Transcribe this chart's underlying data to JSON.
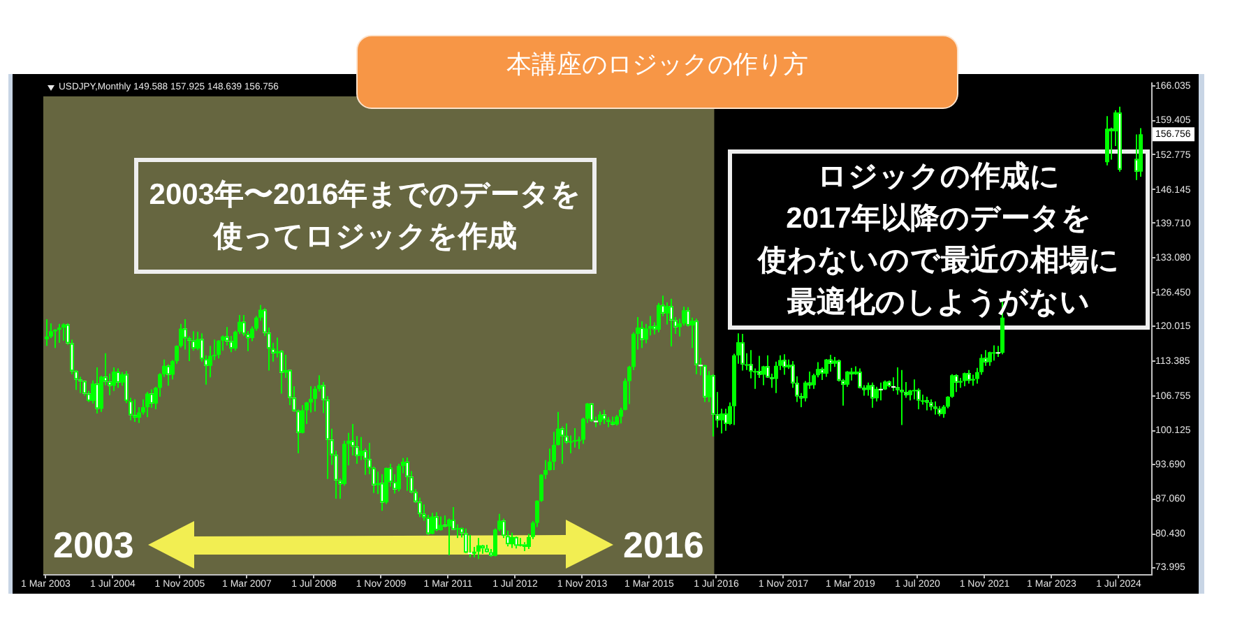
{
  "chart_data": {
    "type": "candlestick",
    "title": "本講座のロジックの作り方",
    "subtitle": "USDJPY,Monthly 149.588 157.925 148.639 156.756",
    "color": "#00ff00",
    "x": [
      "2003-03",
      "2003-04",
      "2003-05",
      "2003-06",
      "2003-07",
      "2003-08",
      "2003-09",
      "2003-10",
      "2003-11",
      "2003-12",
      "2004-01",
      "2004-02",
      "2004-03",
      "2004-04",
      "2004-05",
      "2004-06",
      "2004-07",
      "2004-08",
      "2004-09",
      "2004-10",
      "2004-11",
      "2004-12",
      "2005-01",
      "2005-02",
      "2005-03",
      "2005-04",
      "2005-05",
      "2005-06",
      "2005-07",
      "2005-08",
      "2005-09",
      "2005-10",
      "2005-11",
      "2005-12",
      "2006-01",
      "2006-02",
      "2006-03",
      "2006-04",
      "2006-05",
      "2006-06",
      "2006-07",
      "2006-08",
      "2006-09",
      "2006-10",
      "2006-11",
      "2006-12",
      "2007-01",
      "2007-02",
      "2007-03",
      "2007-04",
      "2007-05",
      "2007-06",
      "2007-07",
      "2007-08",
      "2007-09",
      "2007-10",
      "2007-11",
      "2007-12",
      "2008-01",
      "2008-02",
      "2008-03",
      "2008-04",
      "2008-05",
      "2008-06",
      "2008-07",
      "2008-08",
      "2008-09",
      "2008-10",
      "2008-11",
      "2008-12",
      "2009-01",
      "2009-02",
      "2009-03",
      "2009-04",
      "2009-05",
      "2009-06",
      "2009-07",
      "2009-08",
      "2009-09",
      "2009-10",
      "2009-11",
      "2009-12",
      "2010-01",
      "2010-02",
      "2010-03",
      "2010-04",
      "2010-05",
      "2010-06",
      "2010-07",
      "2010-08",
      "2010-09",
      "2010-10",
      "2010-11",
      "2010-12",
      "2011-01",
      "2011-02",
      "2011-03",
      "2011-04",
      "2011-05",
      "2011-06",
      "2011-07",
      "2011-08",
      "2011-09",
      "2011-10",
      "2011-11",
      "2011-12",
      "2012-01",
      "2012-02",
      "2012-03",
      "2012-04",
      "2012-05",
      "2012-06",
      "2012-07",
      "2012-08",
      "2012-09",
      "2012-10",
      "2012-11",
      "2012-12",
      "2013-01",
      "2013-02",
      "2013-03",
      "2013-04",
      "2013-05",
      "2013-06",
      "2013-07",
      "2013-08",
      "2013-09",
      "2013-10",
      "2013-11",
      "2013-12",
      "2014-01",
      "2014-02",
      "2014-03",
      "2014-04",
      "2014-05",
      "2014-06",
      "2014-07",
      "2014-08",
      "2014-09",
      "2014-10",
      "2014-11",
      "2014-12",
      "2015-01",
      "2015-02",
      "2015-03",
      "2015-04",
      "2015-05",
      "2015-06",
      "2015-07",
      "2015-08",
      "2015-09",
      "2015-10",
      "2015-11",
      "2015-12",
      "2016-01",
      "2016-02",
      "2016-03",
      "2016-04",
      "2016-05",
      "2016-06",
      "2016-07",
      "2016-08",
      "2016-09",
      "2016-10",
      "2016-11",
      "2016-12",
      "2017-01",
      "2017-02",
      "2017-03",
      "2017-04",
      "2017-05",
      "2017-06",
      "2017-07",
      "2017-08",
      "2017-09",
      "2017-10",
      "2017-11",
      "2017-12",
      "2018-01",
      "2018-02",
      "2018-03",
      "2018-04",
      "2018-05",
      "2018-06",
      "2018-07",
      "2018-08",
      "2018-09",
      "2018-10",
      "2018-11",
      "2018-12",
      "2019-01",
      "2019-02",
      "2019-03",
      "2019-04",
      "2019-05",
      "2019-06",
      "2019-07",
      "2019-08",
      "2019-09",
      "2019-10",
      "2019-11",
      "2019-12",
      "2020-01",
      "2020-02",
      "2020-03",
      "2020-04",
      "2020-05",
      "2020-06",
      "2020-07",
      "2020-08",
      "2020-09",
      "2020-10",
      "2020-11",
      "2020-12",
      "2021-01",
      "2021-02",
      "2021-03",
      "2021-04",
      "2021-05",
      "2021-06",
      "2021-07",
      "2021-08",
      "2021-09",
      "2021-10",
      "2021-11",
      "2021-12",
      "2022-01",
      "2022-02",
      "2022-03",
      "2024-04",
      "2024-05",
      "2024-06",
      "2024-07",
      "2024-11",
      "2024-12"
    ],
    "ohlc": [
      [
        117.6,
        121.4,
        116.3,
        118.1
      ],
      [
        118.1,
        120.6,
        117.8,
        119.1
      ],
      [
        119.1,
        119.5,
        115.9,
        119.4
      ],
      [
        119.4,
        120.5,
        116.9,
        119.8
      ],
      [
        119.8,
        120.6,
        117.3,
        120.4
      ],
      [
        120.4,
        120.6,
        116.5,
        116.8
      ],
      [
        116.8,
        117.5,
        110.9,
        111.5
      ],
      [
        111.5,
        111.7,
        107.9,
        109.9
      ],
      [
        109.9,
        110.4,
        107.3,
        109.6
      ],
      [
        109.6,
        109.7,
        106.8,
        107.2
      ],
      [
        107.2,
        107.7,
        105.6,
        105.8
      ],
      [
        105.8,
        109.7,
        105.3,
        109.1
      ],
      [
        109.1,
        112.2,
        103.4,
        104.3
      ],
      [
        104.3,
        110.6,
        103.7,
        110.4
      ],
      [
        110.4,
        114.9,
        108.8,
        109.5
      ],
      [
        109.5,
        111.0,
        106.9,
        108.7
      ],
      [
        108.7,
        112.2,
        107.7,
        111.4
      ],
      [
        111.4,
        112.0,
        108.3,
        109.3
      ],
      [
        109.3,
        111.3,
        108.7,
        110.9
      ],
      [
        110.9,
        111.5,
        105.4,
        105.8
      ],
      [
        105.8,
        106.4,
        102.1,
        103.1
      ],
      [
        103.1,
        106.1,
        101.8,
        102.6
      ],
      [
        102.6,
        104.6,
        101.6,
        103.6
      ],
      [
        103.6,
        106.1,
        103.2,
        104.6
      ],
      [
        104.6,
        107.5,
        102.7,
        107.2
      ],
      [
        107.2,
        108.0,
        104.5,
        105.3
      ],
      [
        105.3,
        108.5,
        104.2,
        108.3
      ],
      [
        108.3,
        111.1,
        106.6,
        110.9
      ],
      [
        110.9,
        113.7,
        110.4,
        112.5
      ],
      [
        112.5,
        112.8,
        108.7,
        110.8
      ],
      [
        110.8,
        113.6,
        109.9,
        113.4
      ],
      [
        113.4,
        116.4,
        112.9,
        116.3
      ],
      [
        116.3,
        120.5,
        116.0,
        119.6
      ],
      [
        119.6,
        121.4,
        115.6,
        117.8
      ],
      [
        117.8,
        118.1,
        113.4,
        117.3
      ],
      [
        117.3,
        119.1,
        115.4,
        115.8
      ],
      [
        115.8,
        119.0,
        115.5,
        117.6
      ],
      [
        117.6,
        118.7,
        113.3,
        113.8
      ],
      [
        113.8,
        114.5,
        108.9,
        112.5
      ],
      [
        112.5,
        116.3,
        110.3,
        114.4
      ],
      [
        114.4,
        117.5,
        113.6,
        114.6
      ],
      [
        114.6,
        117.4,
        113.9,
        117.3
      ],
      [
        117.3,
        118.3,
        115.4,
        118.1
      ],
      [
        118.1,
        119.9,
        116.4,
        117.2
      ],
      [
        117.2,
        118.2,
        115.1,
        115.8
      ],
      [
        115.8,
        119.2,
        115.4,
        119.0
      ],
      [
        119.0,
        122.2,
        118.6,
        120.9
      ],
      [
        120.9,
        122.2,
        118.2,
        118.6
      ],
      [
        118.6,
        119.1,
        115.3,
        117.8
      ],
      [
        117.8,
        120.0,
        117.2,
        119.6
      ],
      [
        119.6,
        122.0,
        119.2,
        121.7
      ],
      [
        121.7,
        124.1,
        121.1,
        123.2
      ],
      [
        123.2,
        123.5,
        118.2,
        118.8
      ],
      [
        118.8,
        119.8,
        111.6,
        115.8
      ],
      [
        115.8,
        116.9,
        113.3,
        114.9
      ],
      [
        114.9,
        117.9,
        114.1,
        115.3
      ],
      [
        115.3,
        115.5,
        107.2,
        111.2
      ],
      [
        111.2,
        114.6,
        110.2,
        111.7
      ],
      [
        111.7,
        111.8,
        105.0,
        106.4
      ],
      [
        106.4,
        108.6,
        103.7,
        103.9
      ],
      [
        103.9,
        104.2,
        95.8,
        99.7
      ],
      [
        99.7,
        105.0,
        99.6,
        104.0
      ],
      [
        104.0,
        105.6,
        101.4,
        105.5
      ],
      [
        105.5,
        108.6,
        103.6,
        106.2
      ],
      [
        106.2,
        108.6,
        103.8,
        108.1
      ],
      [
        108.1,
        110.7,
        107.6,
        108.8
      ],
      [
        108.8,
        109.4,
        103.5,
        106.0
      ],
      [
        106.0,
        106.7,
        90.9,
        98.4
      ],
      [
        98.4,
        100.5,
        93.6,
        95.5
      ],
      [
        95.5,
        96.3,
        87.1,
        90.6
      ],
      [
        90.6,
        91.0,
        87.1,
        89.9
      ],
      [
        89.9,
        98.2,
        89.6,
        97.6
      ],
      [
        97.6,
        99.7,
        93.5,
        98.2
      ],
      [
        98.2,
        101.4,
        95.4,
        97.1
      ],
      [
        97.1,
        99.1,
        93.8,
        95.3
      ],
      [
        95.3,
        98.9,
        94.5,
        96.3
      ],
      [
        96.3,
        96.7,
        91.7,
        94.7
      ],
      [
        94.7,
        97.8,
        91.8,
        93.0
      ],
      [
        93.0,
        93.3,
        88.2,
        89.7
      ],
      [
        89.7,
        92.3,
        88.0,
        90.1
      ],
      [
        90.1,
        91.8,
        84.8,
        86.4
      ],
      [
        86.4,
        93.1,
        86.1,
        93.0
      ],
      [
        93.0,
        93.8,
        89.4,
        90.3
      ],
      [
        90.3,
        91.8,
        88.1,
        88.9
      ],
      [
        88.9,
        93.8,
        88.5,
        93.4
      ],
      [
        93.4,
        94.9,
        92.0,
        94.2
      ],
      [
        94.2,
        95.0,
        88.6,
        91.3
      ],
      [
        91.3,
        92.4,
        88.1,
        88.4
      ],
      [
        88.4,
        88.9,
        86.3,
        86.5
      ],
      [
        86.5,
        87.3,
        83.6,
        84.2
      ],
      [
        84.2,
        86.0,
        82.9,
        83.5
      ],
      [
        83.5,
        84.0,
        80.2,
        80.4
      ],
      [
        80.4,
        84.4,
        80.3,
        83.7
      ],
      [
        83.7,
        84.5,
        80.9,
        81.1
      ],
      [
        81.1,
        83.7,
        81.0,
        82.1
      ],
      [
        82.1,
        83.9,
        81.6,
        81.8
      ],
      [
        81.8,
        83.3,
        76.3,
        83.1
      ],
      [
        83.1,
        85.5,
        81.1,
        81.2
      ],
      [
        81.2,
        82.2,
        79.6,
        81.5
      ],
      [
        81.5,
        81.6,
        79.7,
        80.5
      ],
      [
        80.5,
        81.4,
        76.7,
        76.8
      ],
      [
        76.8,
        80.2,
        75.9,
        76.6
      ],
      [
        76.6,
        77.9,
        75.9,
        77.0
      ],
      [
        77.0,
        79.6,
        75.6,
        78.2
      ],
      [
        78.2,
        78.3,
        76.6,
        77.6
      ],
      [
        77.6,
        78.3,
        76.8,
        76.9
      ],
      [
        76.9,
        77.5,
        76.0,
        76.2
      ],
      [
        76.2,
        81.4,
        76.1,
        81.2
      ],
      [
        81.2,
        84.2,
        80.9,
        82.9
      ],
      [
        82.9,
        83.3,
        79.6,
        80.0
      ],
      [
        80.0,
        81.0,
        78.0,
        78.4
      ],
      [
        78.4,
        80.6,
        77.7,
        79.8
      ],
      [
        79.8,
        79.9,
        77.6,
        78.1
      ],
      [
        78.1,
        79.6,
        78.0,
        78.4
      ],
      [
        78.4,
        78.8,
        77.1,
        77.9
      ],
      [
        77.9,
        80.4,
        77.5,
        79.8
      ],
      [
        79.8,
        82.8,
        79.4,
        82.5
      ],
      [
        82.5,
        86.8,
        81.7,
        86.7
      ],
      [
        86.7,
        91.8,
        86.5,
        91.7
      ],
      [
        91.7,
        94.5,
        90.9,
        92.6
      ],
      [
        92.6,
        96.7,
        92.5,
        94.2
      ],
      [
        94.2,
        99.9,
        92.6,
        97.4
      ],
      [
        97.4,
        103.7,
        97.3,
        100.5
      ],
      [
        100.5,
        100.9,
        93.8,
        99.1
      ],
      [
        99.1,
        101.5,
        97.6,
        97.9
      ],
      [
        97.9,
        99.2,
        95.8,
        98.1
      ],
      [
        98.1,
        100.6,
        96.9,
        98.3
      ],
      [
        98.3,
        99.0,
        96.6,
        98.4
      ],
      [
        98.4,
        102.6,
        97.6,
        102.4
      ],
      [
        102.4,
        105.4,
        101.6,
        105.3
      ],
      [
        105.3,
        105.4,
        101.8,
        102.0
      ],
      [
        102.0,
        102.8,
        100.8,
        101.8
      ],
      [
        101.8,
        103.8,
        101.2,
        103.2
      ],
      [
        103.2,
        104.1,
        101.4,
        102.2
      ],
      [
        102.2,
        102.7,
        100.8,
        101.8
      ],
      [
        101.8,
        102.8,
        101.1,
        101.3
      ],
      [
        101.3,
        103.1,
        101.1,
        102.8
      ],
      [
        102.8,
        104.5,
        101.5,
        104.1
      ],
      [
        104.1,
        110.1,
        104.0,
        109.6
      ],
      [
        109.6,
        112.5,
        105.2,
        112.3
      ],
      [
        112.3,
        118.9,
        111.7,
        118.6
      ],
      [
        118.6,
        121.8,
        115.6,
        119.8
      ],
      [
        119.8,
        121.0,
        115.9,
        117.5
      ],
      [
        117.5,
        120.5,
        116.8,
        119.6
      ],
      [
        119.6,
        122.0,
        118.3,
        120.1
      ],
      [
        120.1,
        120.8,
        118.5,
        119.4
      ],
      [
        119.4,
        124.5,
        118.9,
        124.1
      ],
      [
        124.1,
        125.9,
        122.0,
        122.5
      ],
      [
        122.5,
        124.6,
        120.4,
        123.9
      ],
      [
        123.9,
        125.3,
        116.2,
        121.2
      ],
      [
        121.2,
        121.8,
        118.6,
        119.9
      ],
      [
        119.9,
        121.5,
        118.1,
        120.6
      ],
      [
        120.6,
        123.8,
        120.2,
        123.1
      ],
      [
        123.1,
        123.7,
        120.0,
        120.2
      ],
      [
        120.2,
        121.7,
        115.9,
        121.1
      ],
      [
        121.1,
        121.5,
        110.9,
        112.7
      ],
      [
        112.7,
        114.0,
        110.7,
        112.6
      ],
      [
        112.6,
        112.7,
        105.6,
        106.5
      ],
      [
        106.5,
        111.5,
        105.6,
        110.7
      ],
      [
        110.7,
        110.9,
        99.0,
        103.2
      ],
      [
        103.2,
        107.5,
        100.7,
        102.1
      ],
      [
        102.1,
        104.3,
        99.6,
        103.4
      ],
      [
        103.4,
        104.3,
        100.1,
        101.4
      ],
      [
        101.4,
        105.5,
        101.2,
        104.8
      ],
      [
        104.8,
        114.8,
        101.2,
        114.5
      ],
      [
        114.5,
        118.7,
        112.9,
        117.0
      ],
      [
        117.0,
        118.6,
        111.6,
        112.8
      ],
      [
        112.8,
        114.9,
        111.7,
        112.8
      ],
      [
        112.8,
        115.5,
        110.1,
        111.4
      ],
      [
        111.4,
        112.0,
        108.1,
        111.5
      ],
      [
        111.5,
        114.4,
        110.2,
        110.8
      ],
      [
        110.8,
        112.5,
        108.8,
        112.4
      ],
      [
        112.4,
        114.5,
        110.2,
        110.3
      ],
      [
        110.3,
        111.0,
        108.3,
        110.0
      ],
      [
        110.0,
        113.3,
        107.3,
        112.5
      ],
      [
        112.5,
        114.5,
        111.7,
        113.6
      ],
      [
        113.6,
        114.7,
        110.8,
        112.2
      ],
      [
        112.2,
        113.7,
        111.9,
        112.7
      ],
      [
        112.7,
        113.4,
        108.3,
        109.2
      ],
      [
        109.2,
        110.5,
        105.6,
        106.7
      ],
      [
        106.7,
        107.3,
        104.6,
        106.3
      ],
      [
        106.3,
        109.6,
        105.7,
        109.3
      ],
      [
        109.3,
        111.4,
        108.1,
        108.8
      ],
      [
        108.8,
        111.0,
        108.1,
        110.7
      ],
      [
        110.7,
        113.2,
        110.3,
        111.9
      ],
      [
        111.9,
        112.2,
        109.8,
        111.0
      ],
      [
        111.0,
        113.8,
        110.4,
        113.7
      ],
      [
        113.7,
        114.6,
        111.4,
        112.9
      ],
      [
        112.9,
        114.2,
        112.3,
        113.5
      ],
      [
        113.5,
        113.7,
        109.5,
        109.7
      ],
      [
        109.7,
        110.0,
        104.9,
        108.9
      ],
      [
        108.9,
        111.5,
        108.5,
        111.4
      ],
      [
        111.4,
        112.1,
        109.7,
        110.9
      ],
      [
        110.9,
        112.4,
        110.8,
        111.4
      ],
      [
        111.4,
        112.0,
        108.2,
        108.3
      ],
      [
        108.3,
        108.8,
        106.8,
        107.9
      ],
      [
        107.9,
        109.3,
        106.8,
        108.8
      ],
      [
        108.8,
        109.3,
        104.5,
        106.3
      ],
      [
        106.3,
        108.5,
        105.7,
        108.1
      ],
      [
        108.1,
        109.3,
        105.9,
        108.0
      ],
      [
        108.0,
        109.7,
        107.9,
        109.5
      ],
      [
        109.5,
        109.7,
        108.4,
        108.6
      ],
      [
        108.6,
        110.3,
        107.7,
        108.4
      ],
      [
        108.4,
        112.2,
        107.0,
        107.9
      ],
      [
        107.9,
        111.7,
        101.2,
        107.5
      ],
      [
        107.5,
        109.4,
        106.4,
        106.9
      ],
      [
        106.9,
        107.9,
        105.9,
        107.8
      ],
      [
        107.8,
        109.9,
        106.1,
        107.9
      ],
      [
        107.9,
        108.2,
        104.2,
        105.9
      ],
      [
        105.9,
        107.0,
        105.1,
        105.9
      ],
      [
        105.9,
        106.6,
        104.0,
        105.5
      ],
      [
        105.5,
        106.1,
        104.0,
        104.7
      ],
      [
        104.7,
        105.7,
        103.2,
        104.3
      ],
      [
        104.3,
        104.8,
        102.9,
        103.3
      ],
      [
        103.3,
        105.0,
        102.6,
        104.7
      ],
      [
        104.7,
        106.7,
        104.4,
        106.6
      ],
      [
        106.6,
        110.9,
        106.4,
        110.7
      ],
      [
        110.7,
        110.9,
        107.5,
        109.3
      ],
      [
        109.3,
        110.2,
        108.3,
        109.6
      ],
      [
        109.6,
        111.2,
        108.6,
        111.1
      ],
      [
        111.1,
        111.7,
        109.1,
        109.7
      ],
      [
        109.7,
        110.8,
        108.7,
        110.0
      ],
      [
        110.0,
        112.1,
        109.1,
        111.3
      ],
      [
        111.3,
        114.7,
        110.8,
        114.0
      ],
      [
        114.0,
        115.5,
        112.5,
        113.2
      ],
      [
        113.2,
        115.2,
        112.5,
        115.1
      ],
      [
        115.1,
        116.4,
        113.5,
        115.1
      ],
      [
        115.1,
        116.3,
        114.2,
        115.0
      ],
      [
        115.0,
        125.1,
        114.7,
        121.7
      ],
      [
        151.4,
        160.2,
        150.8,
        157.8
      ],
      [
        157.8,
        158.0,
        151.9,
        157.3
      ],
      [
        157.3,
        161.3,
        154.5,
        160.9
      ],
      [
        160.9,
        162.0,
        149.6,
        150.0
      ],
      [
        152.0,
        156.7,
        148.0,
        149.6
      ],
      [
        149.588,
        157.925,
        148.639,
        156.756
      ]
    ],
    "colors": [
      "#00ff00",
      "#00ff00",
      "#00ff00",
      "#00ff00",
      "#00ff00",
      "#ffffff",
      "#ffffff",
      "#ffffff",
      "#ffffff",
      "#ffffff",
      "#ffffff",
      "#00ff00",
      "#ffffff",
      "#00ff00",
      "#ffffff",
      "#ffffff",
      "#00ff00",
      "#ffffff",
      "#00ff00",
      "#ffffff",
      "#ffffff",
      "#ffffff",
      "#00ff00",
      "#00ff00",
      "#00ff00",
      "#ffffff",
      "#00ff00",
      "#00ff00",
      "#00ff00",
      "#ffffff",
      "#00ff00",
      "#00ff00",
      "#00ff00",
      "#ffffff",
      "#ffffff",
      "#ffffff",
      "#00ff00",
      "#ffffff",
      "#ffffff",
      "#00ff00",
      "#00ff00",
      "#00ff00",
      "#00ff00",
      "#ffffff",
      "#ffffff",
      "#00ff00",
      "#00ff00",
      "#ffffff",
      "#ffffff",
      "#00ff00",
      "#00ff00",
      "#00ff00",
      "#ffffff",
      "#ffffff",
      "#ffffff",
      "#00ff00",
      "#ffffff",
      "#00ff00",
      "#ffffff",
      "#ffffff",
      "#ffffff",
      "#00ff00",
      "#00ff00",
      "#00ff00",
      "#00ff00",
      "#00ff00",
      "#ffffff",
      "#ffffff",
      "#ffffff",
      "#ffffff",
      "#ffffff",
      "#00ff00",
      "#00ff00",
      "#ffffff",
      "#ffffff",
      "#00ff00",
      "#ffffff",
      "#ffffff",
      "#ffffff",
      "#00ff00",
      "#ffffff",
      "#00ff00",
      "#ffffff",
      "#ffffff",
      "#00ff00",
      "#00ff00",
      "#ffffff",
      "#ffffff",
      "#ffffff",
      "#ffffff",
      "#ffffff",
      "#ffffff",
      "#00ff00",
      "#ffffff",
      "#00ff00",
      "#ffffff",
      "#00ff00",
      "#ffffff",
      "#00ff00",
      "#ffffff",
      "#ffffff",
      "#ffffff",
      "#00ff00",
      "#00ff00",
      "#ffffff",
      "#ffffff",
      "#ffffff",
      "#00ff00",
      "#00ff00",
      "#ffffff",
      "#ffffff",
      "#00ff00",
      "#ffffff",
      "#00ff00",
      "#ffffff",
      "#00ff00",
      "#00ff00",
      "#00ff00",
      "#00ff00",
      "#00ff00",
      "#00ff00",
      "#00ff00",
      "#00ff00",
      "#ffffff",
      "#ffffff",
      "#00ff00",
      "#00ff00",
      "#00ff00",
      "#00ff00",
      "#00ff00",
      "#ffffff",
      "#ffffff",
      "#00ff00",
      "#ffffff",
      "#ffffff",
      "#ffffff",
      "#00ff00",
      "#00ff00",
      "#00ff00",
      "#00ff00",
      "#00ff00",
      "#00ff00",
      "#ffffff",
      "#00ff00",
      "#00ff00",
      "#ffffff",
      "#00ff00",
      "#ffffff",
      "#00ff00",
      "#ffffff",
      "#ffffff",
      "#00ff00",
      "#00ff00",
      "#ffffff",
      "#00ff00",
      "#ffffff",
      "#ffffff",
      "#ffffff",
      "#00ff00",
      "#ffffff",
      "#ffffff",
      "#00ff00",
      "#ffffff",
      "#00ff00",
      "#00ff00",
      "#00ff00",
      "#ffffff",
      "#00ff00",
      "#ffffff",
      "#00ff00",
      "#ffffff",
      "#00ff00",
      "#ffffff",
      "#ffffff",
      "#00ff00",
      "#00ff00",
      "#ffffff",
      "#00ff00",
      "#ffffff",
      "#ffffff",
      "#ffffff",
      "#00ff00",
      "#ffffff",
      "#00ff00",
      "#00ff00",
      "#ffffff",
      "#00ff00",
      "#ffffff",
      "#00ff00",
      "#ffffff",
      "#ffffff",
      "#00ff00",
      "#ffffff",
      "#00ff00",
      "#ffffff",
      "#ffffff",
      "#00ff00",
      "#ffffff",
      "#00ff00",
      "#ffffff",
      "#00ff00",
      "#ffffff",
      "#ffffff",
      "#ffffff",
      "#ffffff",
      "#ffffff",
      "#00ff00",
      "#00ff00",
      "#ffffff",
      "#00ff00",
      "#ffffff",
      "#ffffff",
      "#ffffff",
      "#ffffff",
      "#00ff00",
      "#00ff00",
      "#00ff00",
      "#ffffff",
      "#00ff00",
      "#00ff00",
      "#ffffff",
      "#00ff00",
      "#00ff00",
      "#00ff00",
      "#ffffff",
      "#00ff00",
      "#00ff00",
      "#ffffff",
      "#00ff00",
      "#00ff00",
      "#ffffff",
      "#00ff00",
      "#ffffff",
      "#ffffff",
      "#00ff00"
    ],
    "xlim": [
      "2003-02-13",
      "2025-02-22"
    ],
    "xticks": [
      {
        "value": "2003-03-01",
        "label": "1 Mar 2003"
      },
      {
        "value": "2004-07-01",
        "label": "1 Jul 2004"
      },
      {
        "value": "2005-11-01",
        "label": "1 Nov 2005"
      },
      {
        "value": "2007-03-01",
        "label": "1 Mar 2007"
      },
      {
        "value": "2008-07-01",
        "label": "1 Jul 2008"
      },
      {
        "value": "2009-11-01",
        "label": "1 Nov 2009"
      },
      {
        "value": "2011-03-01",
        "label": "1 Mar 2011"
      },
      {
        "value": "2012-07-01",
        "label": "1 Jul 2012"
      },
      {
        "value": "2013-11-01",
        "label": "1 Nov 2013"
      },
      {
        "value": "2015-03-01",
        "label": "1 Mar 2015"
      },
      {
        "value": "2016-07-01",
        "label": "1 Jul 2016"
      },
      {
        "value": "2017-11-01",
        "label": "1 Nov 2017"
      },
      {
        "value": "2019-03-01",
        "label": "1 Mar 2019"
      },
      {
        "value": "2020-07-01",
        "label": "1 Jul 2020"
      },
      {
        "value": "2021-11-01",
        "label": "1 Nov 2021"
      },
      {
        "value": "2023-03-01",
        "label": "1 Mar 2023"
      },
      {
        "value": "2024-07-01",
        "label": "1 Jul 2024"
      }
    ],
    "ylim": [
      72.7,
      166.6
    ],
    "yticks": [
      166.035,
      159.405,
      152.775,
      146.145,
      {
        "value": 139.71,
        "label": "139.710"
      },
      {
        "value": 133.08,
        "label": "133.080"
      },
      {
        "value": 126.45,
        "label": "126.450"
      },
      120.015,
      113.385,
      106.755,
      100.125,
      {
        "value": 93.69,
        "label": "93.690"
      },
      {
        "value": 87.06,
        "label": "87.060"
      },
      {
        "value": 80.43,
        "label": "80.430"
      },
      73.995
    ],
    "bands": [
      {
        "axis": "x",
        "from": "2003-02-13",
        "to": "2016-06-16",
        "color": "#666640"
      }
    ],
    "annotations": [
      "2003年〜2016年までのデータを使ってロジックを作成",
      "ロジックの作成に2017年以降のデータを使わないので最近の相場に最適化のしようがない",
      "2003",
      "2016",
      {
        "text": "156.756",
        "y": 156.756
      }
    ]
  }
}
